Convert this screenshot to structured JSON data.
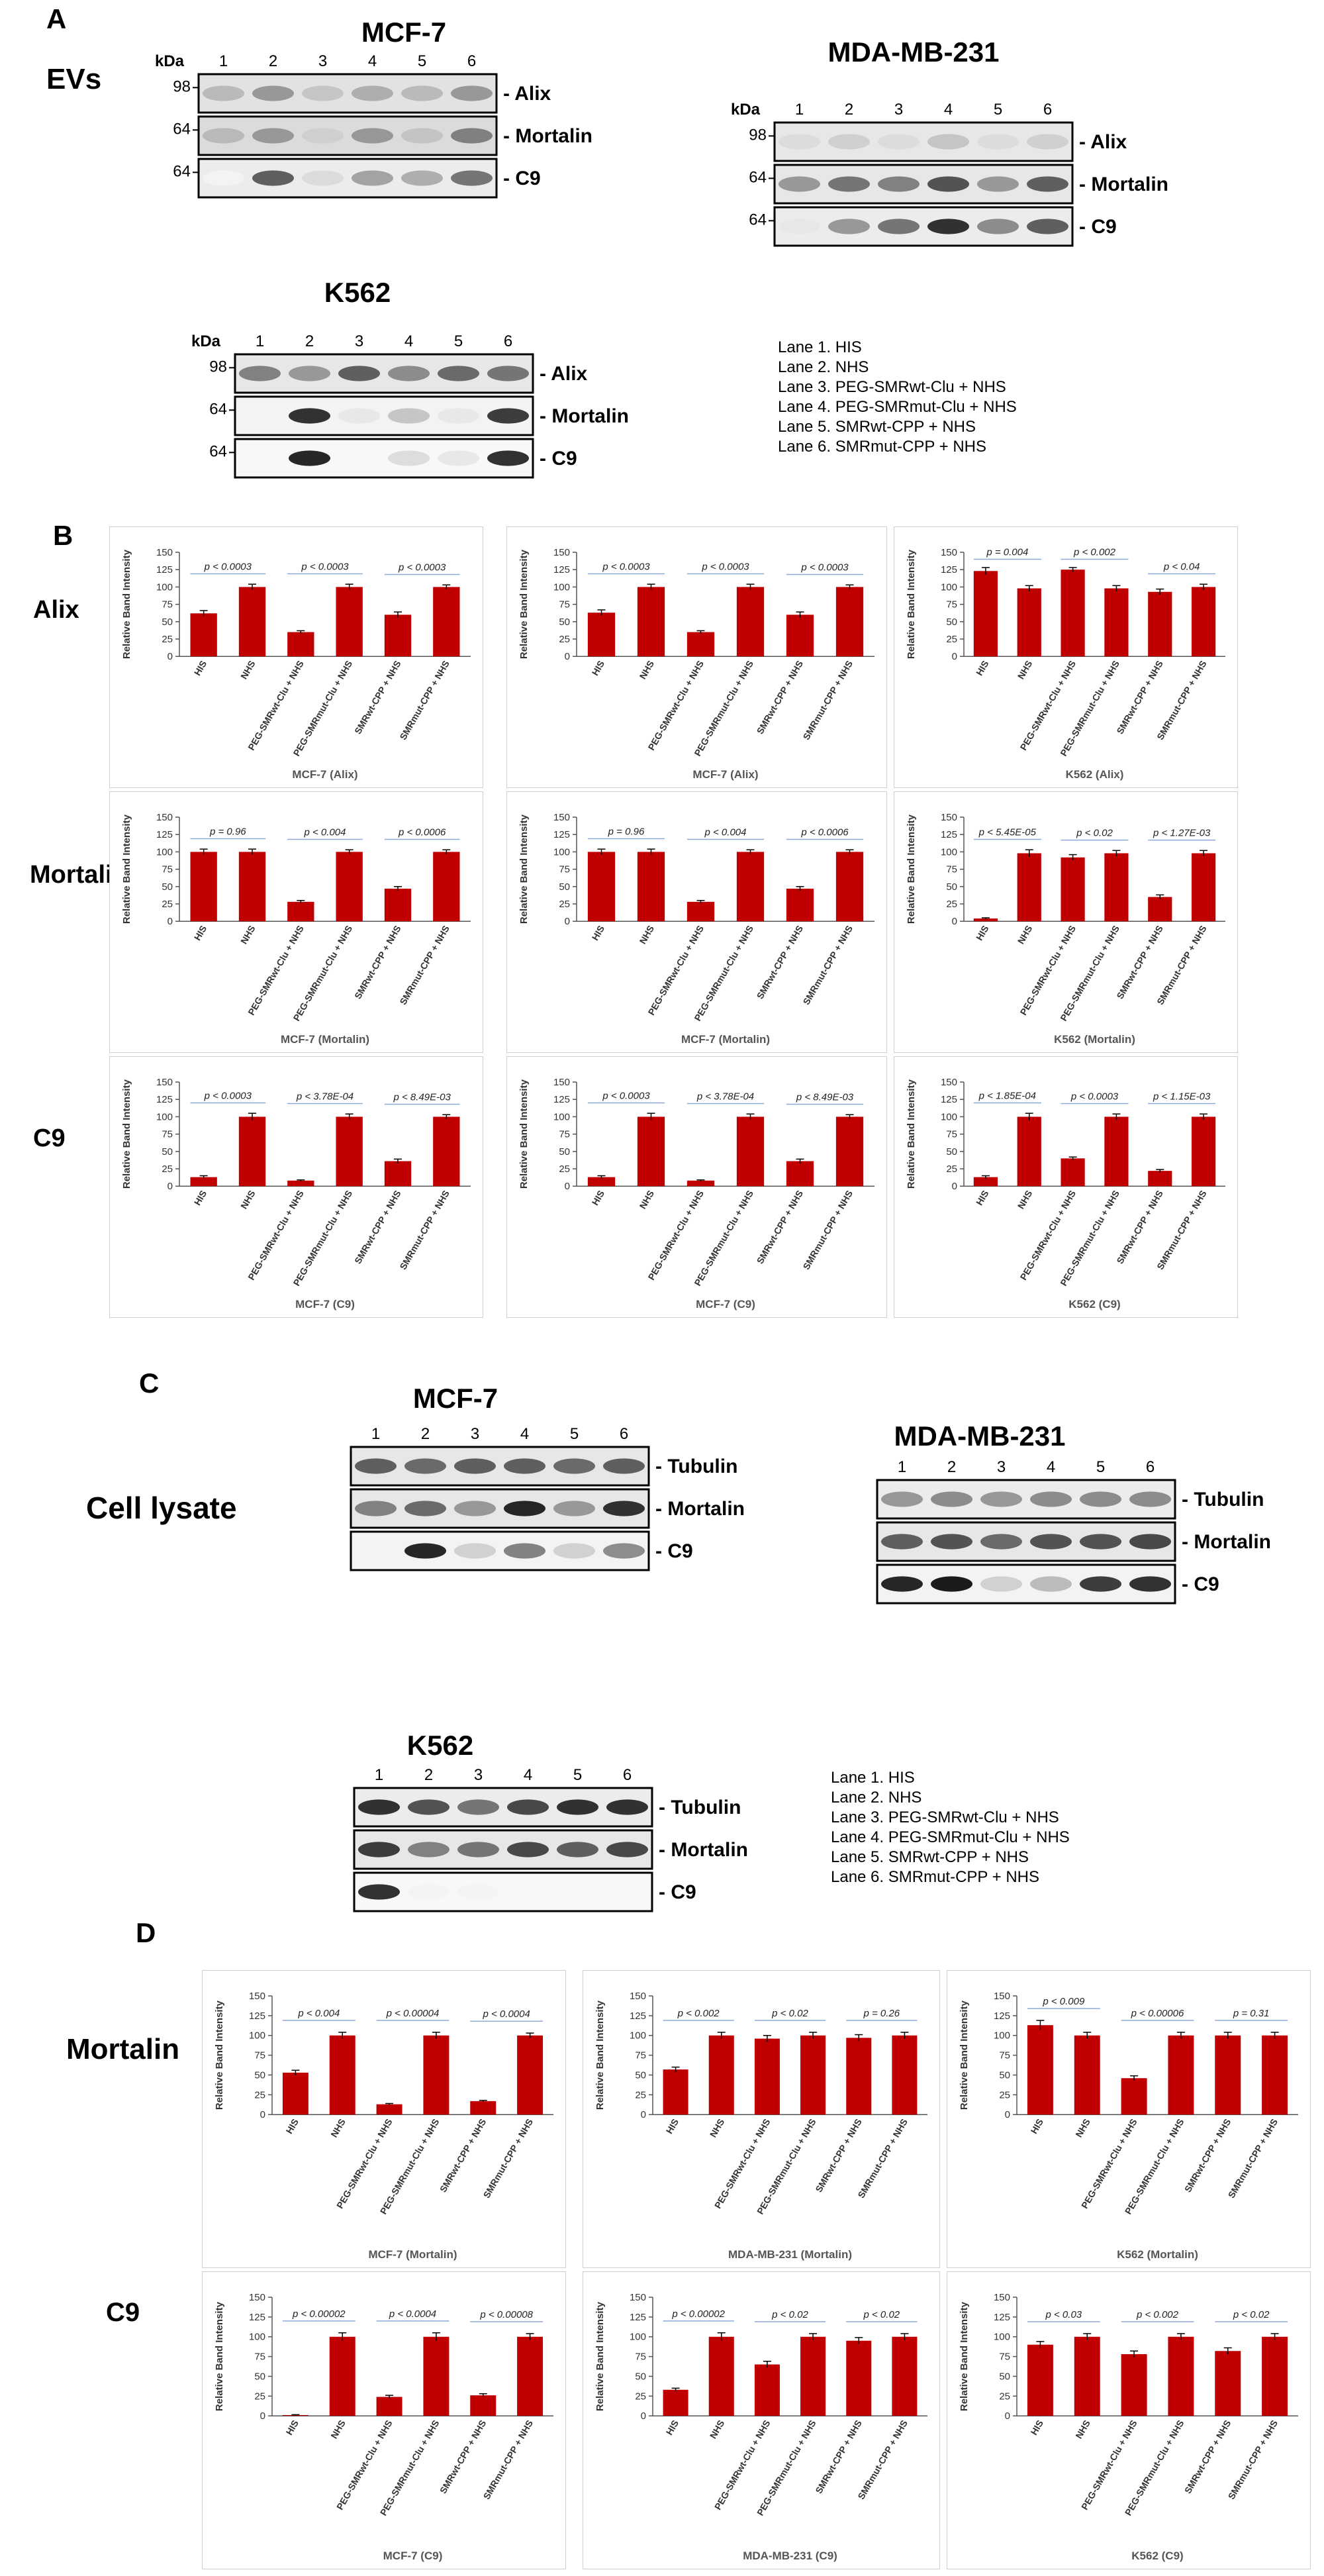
{
  "panels": {
    "A": "A",
    "B": "B",
    "C": "C",
    "D": "D"
  },
  "section_labels": {
    "evs": "EVs",
    "cell_lysate": "Cell lysate",
    "alix": "Alix",
    "mortalin_b": "Mortalin",
    "c9_b": "C9",
    "mortalin_d": "Mortalin",
    "c9_d": "C9"
  },
  "blot_common": {
    "kda": "kDa",
    "lanes": [
      "1",
      "2",
      "3",
      "4",
      "5",
      "6"
    ]
  },
  "legend": [
    "Lane 1. HIS",
    "Lane 2. NHS",
    "Lane 3. PEG-SMRwt-Clu  + NHS",
    "Lane 4. PEG-SMRmut-Clu  + NHS",
    "Lane 5. SMRwt-CPP  + NHS",
    "Lane 6. SMRmut-CPP  + NHS"
  ],
  "blots": [
    {
      "id": "a-mcf7",
      "cell": "MCF-7",
      "show_kda": true,
      "rows": [
        {
          "protein": "Alix",
          "markers": [
            "98"
          ],
          "bands": [
            0.3,
            0.45,
            0.25,
            0.35,
            0.3,
            0.45
          ],
          "bg": 0.12
        },
        {
          "protein": "Mortalin",
          "markers": [
            "64"
          ],
          "bands": [
            0.3,
            0.45,
            0.2,
            0.45,
            0.25,
            0.55
          ],
          "bg": 0.15
        },
        {
          "protein": "C9",
          "markers": [
            "64"
          ],
          "bands": [
            0.05,
            0.7,
            0.15,
            0.4,
            0.35,
            0.6
          ],
          "bg": 0.08
        }
      ]
    },
    {
      "id": "a-mda",
      "cell": "MDA-MB-231",
      "show_kda": true,
      "rows": [
        {
          "protein": "Alix",
          "markers": [
            "98"
          ],
          "bands": [
            0.15,
            0.2,
            0.15,
            0.25,
            0.15,
            0.2
          ],
          "bg": 0.1
        },
        {
          "protein": "Mortalin",
          "markers": [
            "64"
          ],
          "bands": [
            0.45,
            0.6,
            0.55,
            0.75,
            0.45,
            0.7
          ],
          "bg": 0.1
        },
        {
          "protein": "C9",
          "markers": [
            "64"
          ],
          "bands": [
            0.1,
            0.45,
            0.6,
            0.9,
            0.5,
            0.7
          ],
          "bg": 0.08
        }
      ]
    },
    {
      "id": "a-k562",
      "cell": "K562",
      "show_kda": true,
      "rows": [
        {
          "protein": "Alix",
          "markers": [
            "98"
          ],
          "bands": [
            0.55,
            0.45,
            0.7,
            0.5,
            0.65,
            0.6
          ],
          "bg": 0.1
        },
        {
          "protein": "Mortalin",
          "markers": [
            "64"
          ],
          "bands": [
            0.0,
            0.9,
            0.1,
            0.25,
            0.1,
            0.85
          ],
          "bg": 0.05
        },
        {
          "protein": "C9",
          "markers": [
            "64"
          ],
          "bands": [
            0.0,
            0.95,
            0.0,
            0.15,
            0.1,
            0.9
          ],
          "bg": 0.03
        }
      ]
    },
    {
      "id": "c-mcf7",
      "cell": "MCF-7",
      "show_kda": false,
      "rows": [
        {
          "protein": "Tubulin",
          "markers": [],
          "bands": [
            0.7,
            0.65,
            0.7,
            0.7,
            0.65,
            0.7
          ],
          "bg": 0.1
        },
        {
          "protein": "Mortalin",
          "markers": [],
          "bands": [
            0.55,
            0.65,
            0.45,
            0.95,
            0.45,
            0.9
          ],
          "bg": 0.1
        },
        {
          "protein": "C9",
          "markers": [],
          "bands": [
            0.0,
            0.95,
            0.2,
            0.55,
            0.2,
            0.5
          ],
          "bg": 0.05
        }
      ]
    },
    {
      "id": "c-mda",
      "cell": "MDA-MB-231",
      "show_kda": false,
      "rows": [
        {
          "protein": "Tubulin",
          "markers": [],
          "bands": [
            0.45,
            0.5,
            0.45,
            0.5,
            0.5,
            0.5
          ],
          "bg": 0.08
        },
        {
          "protein": "Mortalin",
          "markers": [],
          "bands": [
            0.7,
            0.75,
            0.65,
            0.75,
            0.75,
            0.8
          ],
          "bg": 0.1
        },
        {
          "protein": "C9",
          "markers": [],
          "bands": [
            0.95,
            1.0,
            0.2,
            0.3,
            0.85,
            0.9
          ],
          "bg": 0.05
        }
      ]
    },
    {
      "id": "c-k562",
      "cell": "K562",
      "show_kda": false,
      "rows": [
        {
          "protein": "Tubulin",
          "markers": [],
          "bands": [
            0.9,
            0.75,
            0.6,
            0.8,
            0.9,
            0.9
          ],
          "bg": 0.08
        },
        {
          "protein": "Mortalin",
          "markers": [],
          "bands": [
            0.85,
            0.55,
            0.6,
            0.8,
            0.7,
            0.8
          ],
          "bg": 0.1
        },
        {
          "protein": "C9",
          "markers": [],
          "bands": [
            0.9,
            0.05,
            0.05,
            0.0,
            0.0,
            0.0
          ],
          "bg": 0.03
        }
      ]
    }
  ],
  "chart_common": {
    "ylabel": "Relative Band Intensity",
    "yticks": [
      0,
      25,
      50,
      75,
      100,
      125,
      150
    ],
    "ylim": [
      0,
      150
    ],
    "categories": [
      "HIS",
      "NHS",
      "PEG-SMRwt-Clu + NHS",
      "PEG-SMRmut-Clu + NHS",
      "SMRwt-CPP + NHS",
      "SMRmut-CPP + NHS"
    ],
    "bar_color": "#c00000"
  },
  "chart_data": [
    {
      "type": "bar",
      "xlabel": "MCF-7 (Alix)",
      "values": [
        62,
        100,
        35,
        100,
        60,
        100
      ],
      "errors": [
        4,
        4,
        2,
        4,
        4,
        3
      ],
      "pvalues": [
        {
          "text": "p < 0.0003",
          "pair": [
            0,
            1
          ]
        },
        {
          "text": "p < 0.0003",
          "pair": [
            2,
            3
          ]
        },
        {
          "text": "p < 0.0003",
          "pair": [
            4,
            5
          ]
        }
      ]
    },
    {
      "type": "bar",
      "xlabel": "MCF-7 (Alix)",
      "values": [
        63,
        100,
        35,
        100,
        60,
        100
      ],
      "errors": [
        4,
        4,
        2,
        4,
        4,
        3
      ],
      "pvalues": [
        {
          "text": "p < 0.0003",
          "pair": [
            0,
            1
          ]
        },
        {
          "text": "p < 0.0003",
          "pair": [
            2,
            3
          ]
        },
        {
          "text": "p < 0.0003",
          "pair": [
            4,
            5
          ]
        }
      ]
    },
    {
      "type": "bar",
      "xlabel": "K562 (Alix)",
      "values": [
        123,
        98,
        125,
        98,
        93,
        100
      ],
      "errors": [
        5,
        4,
        3,
        4,
        4,
        4
      ],
      "pvalues": [
        {
          "text": "p = 0.004",
          "pair": [
            0,
            1
          ]
        },
        {
          "text": "p < 0.002",
          "pair": [
            2,
            3
          ]
        },
        {
          "text": "p < 0.04",
          "pair": [
            4,
            5
          ]
        }
      ]
    },
    {
      "type": "bar",
      "xlabel": "MCF-7 (Mortalin)",
      "values": [
        100,
        100,
        28,
        100,
        47,
        100
      ],
      "errors": [
        4,
        4,
        2,
        3,
        3,
        3
      ],
      "pvalues": [
        {
          "text": "p = 0.96",
          "pair": [
            0,
            1
          ]
        },
        {
          "text": "p < 0.004",
          "pair": [
            2,
            3
          ]
        },
        {
          "text": "p < 0.0006",
          "pair": [
            4,
            5
          ]
        }
      ]
    },
    {
      "type": "bar",
      "xlabel": "MCF-7 (Mortalin)",
      "values": [
        100,
        100,
        28,
        100,
        47,
        100
      ],
      "errors": [
        4,
        4,
        2,
        3,
        3,
        3
      ],
      "pvalues": [
        {
          "text": "p = 0.96",
          "pair": [
            0,
            1
          ]
        },
        {
          "text": "p < 0.004",
          "pair": [
            2,
            3
          ]
        },
        {
          "text": "p < 0.0006",
          "pair": [
            4,
            5
          ]
        }
      ]
    },
    {
      "type": "bar",
      "xlabel": "K562 (Mortalin)",
      "values": [
        4,
        98,
        92,
        98,
        35,
        98
      ],
      "errors": [
        1,
        5,
        4,
        4,
        3,
        4
      ],
      "pvalues": [
        {
          "text": "p < 5.45E-05",
          "pair": [
            0,
            1
          ]
        },
        {
          "text": "p < 0.02",
          "pair": [
            2,
            3
          ]
        },
        {
          "text": "p < 1.27E-03",
          "pair": [
            4,
            5
          ]
        }
      ]
    },
    {
      "type": "bar",
      "xlabel": "MCF-7 (C9)",
      "values": [
        13,
        100,
        8,
        100,
        36,
        100
      ],
      "errors": [
        2,
        5,
        1,
        4,
        3,
        3
      ],
      "pvalues": [
        {
          "text": "p < 0.0003",
          "pair": [
            0,
            1
          ]
        },
        {
          "text": "p < 3.78E-04",
          "pair": [
            2,
            3
          ]
        },
        {
          "text": "p < 8.49E-03",
          "pair": [
            4,
            5
          ]
        }
      ]
    },
    {
      "type": "bar",
      "xlabel": "MCF-7 (C9)",
      "values": [
        13,
        100,
        8,
        100,
        36,
        100
      ],
      "errors": [
        2,
        5,
        1,
        4,
        3,
        3
      ],
      "pvalues": [
        {
          "text": "p < 0.0003",
          "pair": [
            0,
            1
          ]
        },
        {
          "text": "p < 3.78E-04",
          "pair": [
            2,
            3
          ]
        },
        {
          "text": "p < 8.49E-03",
          "pair": [
            4,
            5
          ]
        }
      ]
    },
    {
      "type": "bar",
      "xlabel": "K562 (C9)",
      "values": [
        13,
        100,
        40,
        100,
        22,
        100
      ],
      "errors": [
        2,
        5,
        2,
        4,
        2,
        4
      ],
      "pvalues": [
        {
          "text": "p < 1.85E-04",
          "pair": [
            0,
            1
          ]
        },
        {
          "text": "p < 0.0003",
          "pair": [
            2,
            3
          ]
        },
        {
          "text": "p < 1.15E-03",
          "pair": [
            4,
            5
          ]
        }
      ]
    },
    {
      "type": "bar",
      "xlabel": "MCF-7 (Mortalin)",
      "values": [
        53,
        100,
        13,
        100,
        17,
        100
      ],
      "errors": [
        3,
        4,
        1,
        4,
        1,
        3
      ],
      "pvalues": [
        {
          "text": "p < 0.004",
          "pair": [
            0,
            1
          ]
        },
        {
          "text": "p < 0.00004",
          "pair": [
            2,
            3
          ]
        },
        {
          "text": "p < 0.0004",
          "pair": [
            4,
            5
          ]
        }
      ]
    },
    {
      "type": "bar",
      "xlabel": "MDA-MB-231 (Mortalin)",
      "values": [
        57,
        100,
        96,
        100,
        97,
        100
      ],
      "errors": [
        3,
        4,
        4,
        4,
        4,
        4
      ],
      "pvalues": [
        {
          "text": "p < 0.002",
          "pair": [
            0,
            1
          ]
        },
        {
          "text": "p < 0.02",
          "pair": [
            2,
            3
          ]
        },
        {
          "text": "p = 0.26",
          "pair": [
            4,
            5
          ]
        }
      ]
    },
    {
      "type": "bar",
      "xlabel": "K562 (Mortalin)",
      "values": [
        113,
        100,
        46,
        100,
        100,
        100
      ],
      "errors": [
        6,
        4,
        3,
        4,
        4,
        4
      ],
      "pvalues": [
        {
          "text": "p < 0.009",
          "pair": [
            0,
            1
          ]
        },
        {
          "text": "p < 0.00006",
          "pair": [
            2,
            3
          ]
        },
        {
          "text": "p = 0.31",
          "pair": [
            4,
            5
          ]
        }
      ]
    },
    {
      "type": "bar",
      "xlabel": "MCF-7 (C9)",
      "values": [
        1,
        100,
        24,
        100,
        26,
        100
      ],
      "errors": [
        0.5,
        5,
        2,
        5,
        2,
        4
      ],
      "pvalues": [
        {
          "text": "p < 0.00002",
          "pair": [
            0,
            1
          ]
        },
        {
          "text": "p < 0.0004",
          "pair": [
            2,
            3
          ]
        },
        {
          "text": "p < 0.00008",
          "pair": [
            4,
            5
          ]
        }
      ]
    },
    {
      "type": "bar",
      "xlabel": "MDA-MB-231 (C9)",
      "values": [
        33,
        100,
        65,
        100,
        95,
        100
      ],
      "errors": [
        2,
        5,
        4,
        4,
        4,
        4
      ],
      "pvalues": [
        {
          "text": "p < 0.00002",
          "pair": [
            0,
            1
          ]
        },
        {
          "text": "p < 0.02",
          "pair": [
            2,
            3
          ]
        },
        {
          "text": "p < 0.02",
          "pair": [
            4,
            5
          ]
        }
      ]
    },
    {
      "type": "bar",
      "xlabel": "K562 (C9)",
      "values": [
        90,
        100,
        78,
        100,
        82,
        100
      ],
      "errors": [
        4,
        4,
        4,
        4,
        4,
        4
      ],
      "pvalues": [
        {
          "text": "p < 0.03",
          "pair": [
            0,
            1
          ]
        },
        {
          "text": "p < 0.002",
          "pair": [
            2,
            3
          ]
        },
        {
          "text": "p < 0.02",
          "pair": [
            4,
            5
          ]
        }
      ]
    }
  ]
}
